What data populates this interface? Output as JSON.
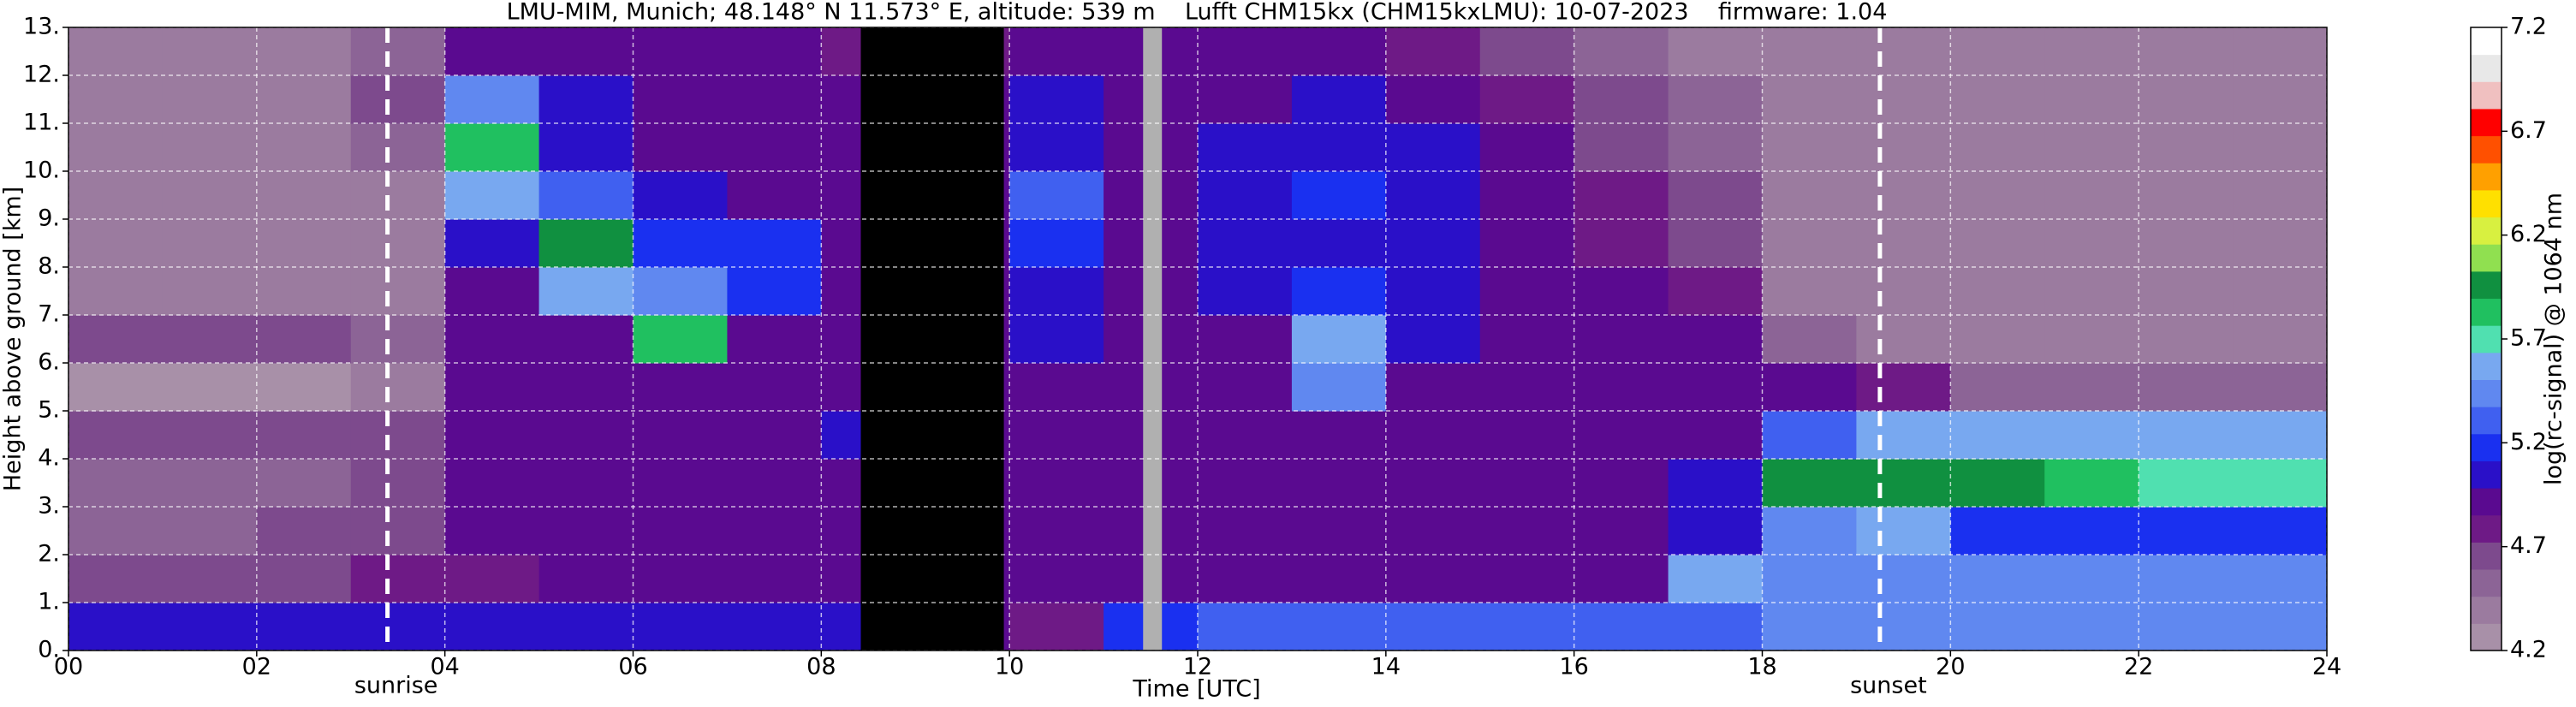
{
  "chart_data": {
    "type": "heatmap",
    "title": "LMU-MIM, Munich; 48.148° N 11.573° E, altitude: 539 m    Lufft CHM15kx (CHM15kxLMU): 10-07-2023    firmware: 1.04",
    "x_label": "Time [UTC]",
    "y_label": "Height above ground [km]",
    "colorbar_label": "log(rc-signal) @ 1064 nm",
    "xlim": [
      0,
      24
    ],
    "ylim": [
      0,
      13
    ],
    "xticks": [
      {
        "value": 0,
        "label": "00"
      },
      {
        "value": 2,
        "label": "02"
      },
      {
        "value": 4,
        "label": "04"
      },
      {
        "value": 6,
        "label": "06"
      },
      {
        "value": 8,
        "label": "08"
      },
      {
        "value": 10,
        "label": "10"
      },
      {
        "value": 12,
        "label": "12"
      },
      {
        "value": 14,
        "label": "14"
      },
      {
        "value": 16,
        "label": "16"
      },
      {
        "value": 18,
        "label": "18"
      },
      {
        "value": 20,
        "label": "20"
      },
      {
        "value": 22,
        "label": "22"
      },
      {
        "value": 24,
        "label": "24"
      }
    ],
    "yticks": [
      {
        "value": 0,
        "label": "0."
      },
      {
        "value": 1,
        "label": "1."
      },
      {
        "value": 2,
        "label": "2."
      },
      {
        "value": 3,
        "label": "3."
      },
      {
        "value": 4,
        "label": "4."
      },
      {
        "value": 5,
        "label": "5."
      },
      {
        "value": 6,
        "label": "6."
      },
      {
        "value": 7,
        "label": "7."
      },
      {
        "value": 8,
        "label": "8."
      },
      {
        "value": 9,
        "label": "9."
      },
      {
        "value": 10,
        "label": "10."
      },
      {
        "value": 11,
        "label": "11."
      },
      {
        "value": 12,
        "label": "12."
      },
      {
        "value": 13,
        "label": "13."
      }
    ],
    "grid": true,
    "clim": [
      4.2,
      7.2
    ],
    "cticks": [
      4.2,
      4.7,
      5.2,
      5.7,
      6.2,
      6.7,
      7.2
    ],
    "colormap": [
      "#a890a8",
      "#9b7b9f",
      "#8c6496",
      "#7d4a8d",
      "#6e1a86",
      "#5a0a90",
      "#2a10c8",
      "#1a30f0",
      "#4060f0",
      "#6088f0",
      "#78a8f0",
      "#50e0b0",
      "#20c060",
      "#109040",
      "#90e050",
      "#d8f040",
      "#ffe000",
      "#ffa000",
      "#ff5000",
      "#ff0000",
      "#f0c0c0",
      "#e8e8e8",
      "#ffffff"
    ],
    "x_bins": [
      0,
      1,
      2,
      3,
      4,
      5,
      6,
      7,
      8,
      9,
      10,
      11,
      12,
      13,
      14,
      15,
      16,
      17,
      18,
      19,
      20,
      21,
      22,
      23,
      24
    ],
    "y_bins": [
      0,
      1,
      2,
      3,
      4,
      5,
      6,
      7,
      8,
      9,
      10,
      11,
      12,
      13
    ],
    "z": [
      [
        5.0,
        5.0,
        5.0,
        5.0,
        5.0,
        5.0,
        5.0,
        5.1,
        5.1,
        4.9,
        4.8,
        5.2,
        5.3,
        5.3,
        5.3,
        5.3,
        5.3,
        5.3,
        5.4,
        5.4,
        5.4,
        5.4,
        5.4,
        5.4
      ],
      [
        4.7,
        4.7,
        4.7,
        4.8,
        4.8,
        4.9,
        4.9,
        4.9,
        4.9,
        4.9,
        4.9,
        4.9,
        4.9,
        4.9,
        4.9,
        4.9,
        4.9,
        5.6,
        5.4,
        5.4,
        5.4,
        5.4,
        5.4,
        5.4
      ],
      [
        4.5,
        4.5,
        4.6,
        4.7,
        4.9,
        4.9,
        4.9,
        4.9,
        4.9,
        4.9,
        4.9,
        4.9,
        4.9,
        4.9,
        4.9,
        4.9,
        4.9,
        5.1,
        5.5,
        5.6,
        5.2,
        5.2,
        5.2,
        5.2
      ],
      [
        4.5,
        4.5,
        4.5,
        4.6,
        4.9,
        4.9,
        4.9,
        4.9,
        4.9,
        4.9,
        4.9,
        4.9,
        4.9,
        4.9,
        4.9,
        4.9,
        4.9,
        5.0,
        6.0,
        6.0,
        5.9,
        5.8,
        5.7,
        5.7
      ],
      [
        4.6,
        4.6,
        4.6,
        4.6,
        4.9,
        4.9,
        4.9,
        4.9,
        5.0,
        4.9,
        4.9,
        4.9,
        4.9,
        4.9,
        4.9,
        4.9,
        4.9,
        4.9,
        5.3,
        5.6,
        5.6,
        5.6,
        5.6,
        5.6
      ],
      [
        4.3,
        4.3,
        4.3,
        4.4,
        4.9,
        4.9,
        4.9,
        4.9,
        4.9,
        4.9,
        4.9,
        4.9,
        4.9,
        5.5,
        4.9,
        4.9,
        4.9,
        4.9,
        4.9,
        4.8,
        4.5,
        4.5,
        4.5,
        4.5
      ],
      [
        4.6,
        4.6,
        4.6,
        4.5,
        4.9,
        4.9,
        5.8,
        4.9,
        4.9,
        4.9,
        5.0,
        4.9,
        4.9,
        5.6,
        5.0,
        4.9,
        4.9,
        4.9,
        4.5,
        4.4,
        4.4,
        4.4,
        4.4,
        4.4
      ],
      [
        4.4,
        4.4,
        4.4,
        4.4,
        4.9,
        5.6,
        5.5,
        5.2,
        4.9,
        4.9,
        5.1,
        4.9,
        5.0,
        5.2,
        5.1,
        4.9,
        4.9,
        4.8,
        4.4,
        4.4,
        4.4,
        4.4,
        4.4,
        4.4
      ],
      [
        4.4,
        4.4,
        4.4,
        4.4,
        5.0,
        5.9,
        5.2,
        5.2,
        4.9,
        4.9,
        5.2,
        4.9,
        5.0,
        5.1,
        5.0,
        4.9,
        4.8,
        4.7,
        4.4,
        4.4,
        4.4,
        4.4,
        4.4,
        4.4
      ],
      [
        4.4,
        4.4,
        4.4,
        4.4,
        5.6,
        5.3,
        5.0,
        4.9,
        4.9,
        4.9,
        5.3,
        4.9,
        5.1,
        5.2,
        5.0,
        4.9,
        4.8,
        4.6,
        4.4,
        4.4,
        4.4,
        4.4,
        4.4,
        4.4
      ],
      [
        4.4,
        4.4,
        4.4,
        4.5,
        5.8,
        5.0,
        4.9,
        4.9,
        4.9,
        4.9,
        5.1,
        4.9,
        5.0,
        5.1,
        5.0,
        4.9,
        4.7,
        4.5,
        4.4,
        4.4,
        4.4,
        4.4,
        4.4,
        4.4
      ],
      [
        4.4,
        4.4,
        4.4,
        4.6,
        5.5,
        5.0,
        4.9,
        4.9,
        4.9,
        4.9,
        5.0,
        4.9,
        4.9,
        5.0,
        4.9,
        4.8,
        4.6,
        4.5,
        4.4,
        4.4,
        4.4,
        4.4,
        4.4,
        4.4
      ],
      [
        4.4,
        4.4,
        4.4,
        4.5,
        4.9,
        4.9,
        4.9,
        4.9,
        4.8,
        4.8,
        4.9,
        4.9,
        4.9,
        4.9,
        4.8,
        4.7,
        4.5,
        4.4,
        4.4,
        4.4,
        4.4,
        4.4,
        4.4,
        4.4
      ]
    ],
    "masked_intervals": [
      {
        "x": [
          8.42,
          9.94
        ],
        "color": "#000000"
      },
      {
        "x": [
          11.42,
          11.62
        ],
        "color": "#b0b0b0"
      }
    ],
    "annotations": [
      {
        "label": "sunrise",
        "x": 3.39
      },
      {
        "label": "sunset",
        "x": 19.25
      }
    ]
  }
}
